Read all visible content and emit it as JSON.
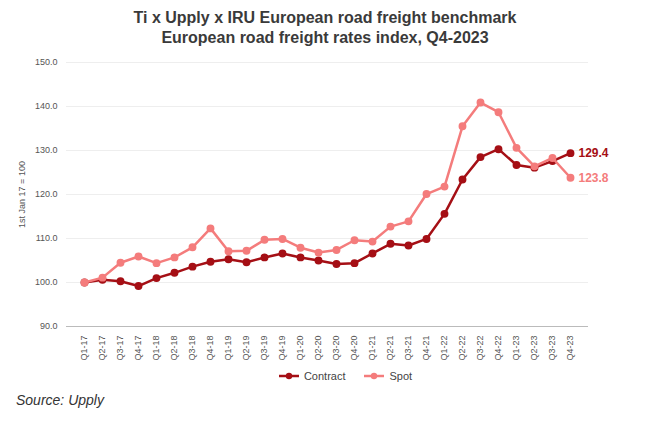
{
  "chart_data": {
    "type": "line",
    "title": "Ti x Upply x IRU European road freight benchmark",
    "subtitle": "European road freight rates index, Q4-2023",
    "y_label": "1st Jan 17 = 100",
    "source": "Source: Upply",
    "categories": [
      "Q1-17",
      "Q2-17",
      "Q3-17",
      "Q4-17",
      "Q1-18",
      "Q2-18",
      "Q3-18",
      "Q4-18",
      "Q1-19",
      "Q2-19",
      "Q3-19",
      "Q4-19",
      "Q1-20",
      "Q2-20",
      "Q3-20",
      "Q4-20",
      "Q1-21",
      "Q2-21",
      "Q3-21",
      "Q4-21",
      "Q1-22",
      "Q2-22",
      "Q3-22",
      "Q4-22",
      "Q1-23",
      "Q2-23",
      "Q3-23",
      "Q4-23"
    ],
    "series": [
      {
        "name": "Contract",
        "color": "#a50f15",
        "marker": "circle",
        "values": [
          100,
          100.6,
          100.3,
          99.2,
          101.0,
          102.2,
          103.6,
          104.7,
          105.3,
          104.6,
          105.7,
          106.6,
          105.7,
          105.0,
          104.2,
          104.4,
          106.6,
          108.8,
          108.4,
          109.9,
          115.6,
          123.4,
          128.5,
          130.3,
          126.7,
          126.1,
          127.6,
          129.4
        ],
        "value_labels": [
          null,
          null,
          null,
          null,
          null,
          null,
          null,
          null,
          null,
          null,
          null,
          null,
          null,
          null,
          null,
          null,
          null,
          null,
          null,
          null,
          null,
          null,
          null,
          null,
          null,
          null,
          null,
          "129.4"
        ]
      },
      {
        "name": "Spot",
        "color": "#f47c7c",
        "marker": "circle",
        "values": [
          100,
          101.1,
          104.5,
          105.9,
          104.4,
          105.7,
          108.0,
          112.3,
          107.1,
          107.2,
          109.7,
          109.9,
          107.9,
          106.8,
          107.4,
          109.6,
          109.3,
          112.7,
          113.9,
          120.1,
          121.8,
          135.5,
          140.9,
          138.7,
          130.6,
          126.4,
          128.3,
          123.8
        ],
        "value_labels": [
          null,
          null,
          null,
          null,
          null,
          null,
          null,
          null,
          null,
          null,
          null,
          null,
          null,
          null,
          null,
          null,
          null,
          null,
          null,
          null,
          null,
          null,
          null,
          null,
          null,
          null,
          null,
          "123.8"
        ]
      }
    ],
    "ylim": [
      90,
      150
    ],
    "yticks": [
      {
        "value": 90,
        "label": "90.0"
      },
      {
        "value": 100,
        "label": "100.0"
      },
      {
        "value": 110,
        "label": "110.0"
      },
      {
        "value": 120,
        "label": "120.0"
      },
      {
        "value": 130,
        "label": "130.0"
      },
      {
        "value": 140,
        "label": "140.0"
      },
      {
        "value": 150,
        "label": "150.0"
      }
    ],
    "grid": true,
    "legend": "bottom"
  }
}
